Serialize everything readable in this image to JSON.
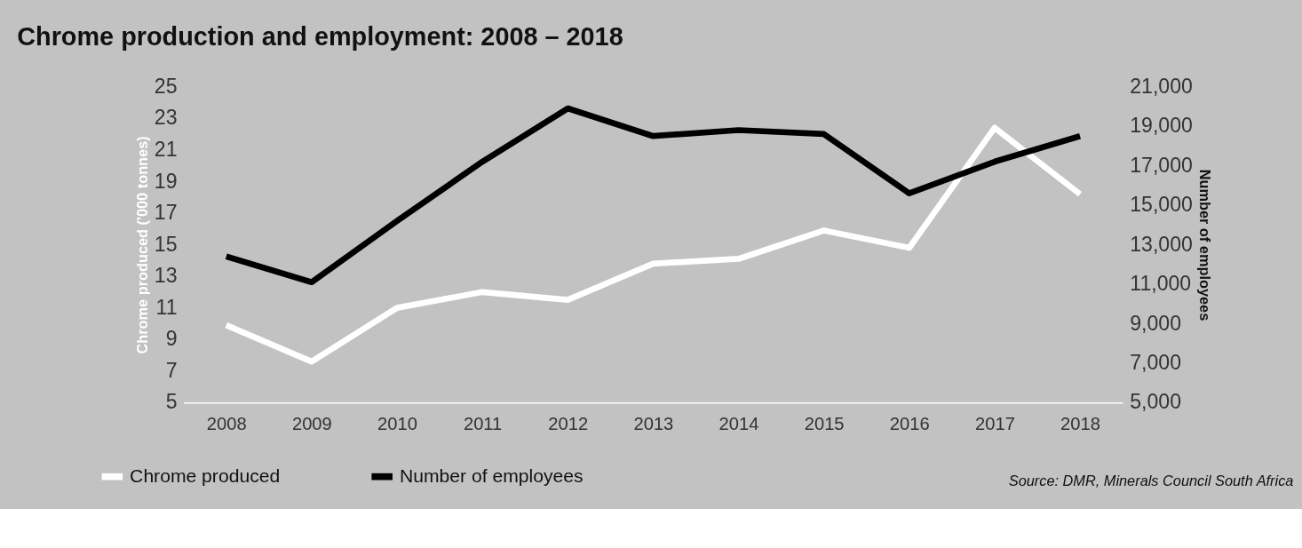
{
  "chart_data": {
    "type": "line",
    "title": "Chrome production and employment: 2008 – 2018",
    "categories": [
      "2008",
      "2009",
      "2010",
      "2011",
      "2012",
      "2013",
      "2014",
      "2015",
      "2016",
      "2017",
      "2018"
    ],
    "series": [
      {
        "name": "Chrome produced",
        "color": "#ffffff",
        "values": [
          9.9,
          7.6,
          11.0,
          12.0,
          11.5,
          13.8,
          14.1,
          15.9,
          14.8,
          22.4,
          18.2
        ]
      },
      {
        "name": "Number of employees",
        "color": "#000000",
        "axis": "y2",
        "values": [
          12400,
          11100,
          14200,
          17200,
          19900,
          18500,
          18800,
          18600,
          15600,
          17200,
          18500
        ]
      }
    ],
    "ylabel": "Chrome produced ('000 tonnes)",
    "y2label": "Number of employees",
    "ylim": [
      5,
      25
    ],
    "yticks": [
      5,
      7,
      9,
      11,
      13,
      15,
      17,
      19,
      21,
      23,
      25
    ],
    "y2lim": [
      5000,
      21000
    ],
    "y2ticks": [
      {
        "value": 5000,
        "label": "5,000"
      },
      {
        "value": 7000,
        "label": "7,000"
      },
      {
        "value": 9000,
        "label": "9,000"
      },
      {
        "value": 11000,
        "label": "11,000"
      },
      {
        "value": 13000,
        "label": "13,000"
      },
      {
        "value": 15000,
        "label": "15,000"
      },
      {
        "value": 17000,
        "label": "17,000"
      },
      {
        "value": 19000,
        "label": "19,000"
      },
      {
        "value": 21000,
        "label": "21,000"
      }
    ],
    "grid": false,
    "legend": "bottom left",
    "marker": "none",
    "line_style": "solid",
    "annotations": [
      "Source: DMR, Minerals Council South Africa"
    ]
  }
}
